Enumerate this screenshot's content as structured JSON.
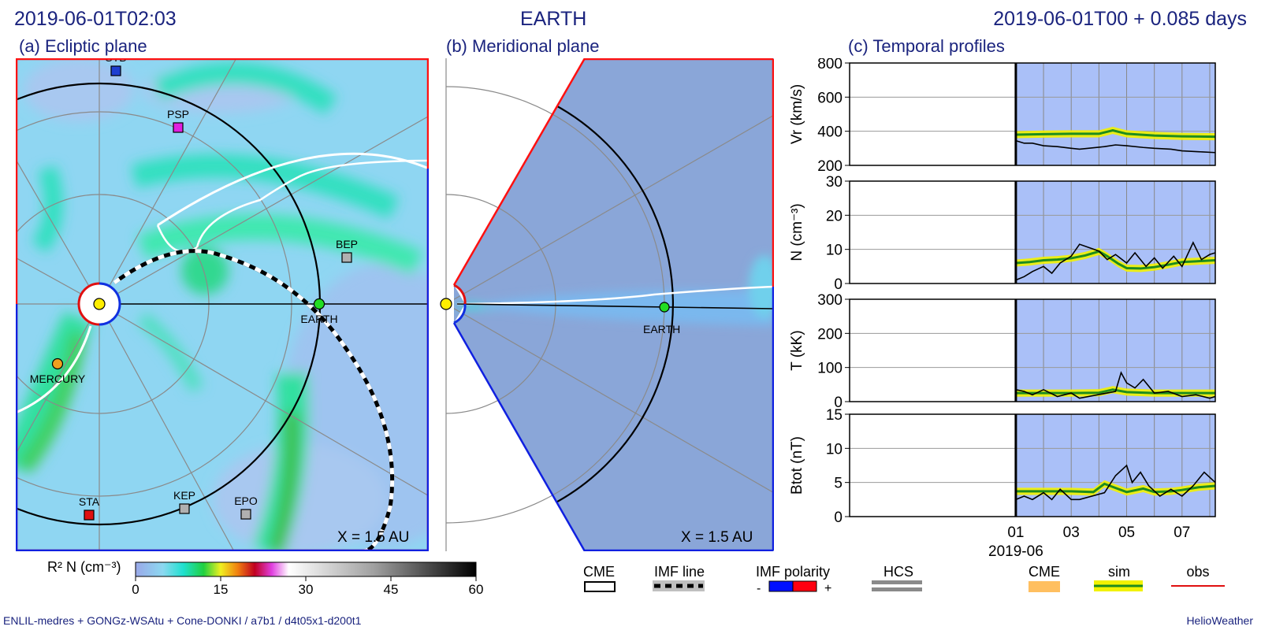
{
  "header": {
    "left_timestamp": "2019-06-01T02:03",
    "center_title": "EARTH",
    "right_timestamp": "2019-06-01T00 +  0.085 days"
  },
  "panels": {
    "a": {
      "title": "(a) Ecliptic plane",
      "scale_label": "X = 1.5 AU",
      "bodies": [
        {
          "name": "STB",
          "color": "#1f3fd0",
          "marker": "square"
        },
        {
          "name": "PSP",
          "color": "#e020e0",
          "marker": "square"
        },
        {
          "name": "BEP",
          "color": "#b0b0b0",
          "marker": "square"
        },
        {
          "name": "EARTH",
          "color": "#22dd22",
          "marker": "circle"
        },
        {
          "name": "MERCURY",
          "color": "#f0a020",
          "marker": "circle"
        },
        {
          "name": "STA",
          "color": "#e01010",
          "marker": "square"
        },
        {
          "name": "KEP",
          "color": "#b0b0b0",
          "marker": "square"
        },
        {
          "name": "EPO",
          "color": "#b0b0b0",
          "marker": "square"
        }
      ]
    },
    "b": {
      "title": "(b) Meridional plane",
      "scale_label": "X = 1.5 AU",
      "bodies": [
        {
          "name": "EARTH",
          "color": "#22dd22",
          "marker": "circle"
        }
      ]
    },
    "c": {
      "title": "(c) Temporal profiles",
      "x_ticks": [
        "01",
        "03",
        "05",
        "07"
      ],
      "x_sublabel": "2019-06"
    }
  },
  "colorbar": {
    "label": "R² N (cm⁻³)",
    "range": [
      0,
      60
    ],
    "ticks": [
      "0",
      "15",
      "30",
      "45",
      "60"
    ]
  },
  "legend": {
    "cme_outline": "CME",
    "imf_line": "IMF line",
    "imf_polarity": "IMF polarity",
    "polarity_minus": "-",
    "polarity_plus": "+",
    "hcs": "HCS",
    "cme_fill": "CME",
    "sim": "sim",
    "obs": "obs"
  },
  "footer": {
    "left": "ENLIL-medres + GONGz-WSAtu + Cone-DONKI / a7b1 / d4t05x1-d200t1",
    "right": "HelioWeather"
  },
  "colors": {
    "title_blue": "#1a237e",
    "sim_green": "#1e8c1e",
    "sim_band": "#f2f200",
    "obs": "#000000",
    "cme": "#ffbf60",
    "imf_neg": "#0010ff",
    "imf_pos": "#ff0010",
    "profile_bg": "#aac0f8"
  },
  "chart_data": [
    {
      "type": "line",
      "panel": "Vr",
      "ylabel": "Vr (km/s)",
      "ylim": [
        200,
        800
      ],
      "yticks": [
        200,
        400,
        600,
        800
      ],
      "xlim": [
        -5,
        8.2
      ],
      "x_unit": "days of 2019-06",
      "grid": true,
      "series": [
        {
          "name": "sim",
          "x": [
            1.0,
            2.0,
            3.0,
            4.0,
            4.5,
            5.0,
            6.0,
            7.0,
            8.2
          ],
          "values": [
            380,
            383,
            385,
            385,
            405,
            385,
            375,
            370,
            368
          ]
        },
        {
          "name": "obs",
          "x": [
            1.0,
            1.3,
            1.6,
            2.0,
            2.5,
            3.0,
            3.3,
            4.2,
            4.6,
            5.0,
            5.6,
            6.0,
            6.6,
            7.0,
            7.6,
            8.2
          ],
          "values": [
            345,
            330,
            330,
            315,
            310,
            300,
            295,
            310,
            320,
            315,
            305,
            300,
            295,
            285,
            280,
            275
          ]
        }
      ]
    },
    {
      "type": "line",
      "panel": "N",
      "ylabel": "N (cm⁻³)",
      "ylim": [
        0,
        30
      ],
      "yticks": [
        0,
        10,
        20,
        30
      ],
      "xlim": [
        -5,
        8.2
      ],
      "x_unit": "days of 2019-06",
      "grid": true,
      "series": [
        {
          "name": "sim",
          "x": [
            1.0,
            1.5,
            2.0,
            2.5,
            3.0,
            3.5,
            4.0,
            4.3,
            4.7,
            5.0,
            5.5,
            6.0,
            6.5,
            7.0,
            7.5,
            8.2
          ],
          "values": [
            6,
            6.3,
            6.8,
            7,
            7.4,
            8.2,
            9.4,
            8,
            5.8,
            4.5,
            4.4,
            4.8,
            5.5,
            6.3,
            6.5,
            6.8
          ]
        },
        {
          "name": "obs",
          "x": [
            1.0,
            1.3,
            1.6,
            2.0,
            2.3,
            2.6,
            3.0,
            3.3,
            4.0,
            4.3,
            4.6,
            5.0,
            5.3,
            5.7,
            6.0,
            6.3,
            6.7,
            7.0,
            7.4,
            7.7,
            8.0,
            8.2
          ],
          "values": [
            1,
            2,
            3.5,
            5,
            3,
            6,
            8,
            11.5,
            9.5,
            7,
            8.5,
            6,
            9,
            5,
            7.5,
            4.5,
            8,
            5,
            12,
            7,
            8.5,
            9
          ]
        }
      ]
    },
    {
      "type": "line",
      "panel": "T",
      "ylabel": "T (kK)",
      "ylim": [
        0,
        300
      ],
      "yticks": [
        0,
        100,
        200,
        300
      ],
      "xlim": [
        -5,
        8.2
      ],
      "x_unit": "days of 2019-06",
      "grid": true,
      "series": [
        {
          "name": "sim",
          "x": [
            1.0,
            2.0,
            3.0,
            4.0,
            4.5,
            5.0,
            6.0,
            7.0,
            8.2
          ],
          "values": [
            25,
            25,
            25,
            26,
            35,
            28,
            25,
            25,
            25
          ]
        },
        {
          "name": "obs",
          "x": [
            1.0,
            1.3,
            1.6,
            2.0,
            2.5,
            3.0,
            3.3,
            4.6,
            4.8,
            5.0,
            5.3,
            5.6,
            6.0,
            6.5,
            7.0,
            7.5,
            8.0,
            8.2
          ],
          "values": [
            35,
            30,
            20,
            35,
            15,
            25,
            10,
            30,
            85,
            55,
            40,
            65,
            25,
            30,
            15,
            20,
            10,
            15
          ]
        }
      ]
    },
    {
      "type": "line",
      "panel": "Btot",
      "ylabel": "Btot (nT)",
      "ylim": [
        0,
        15
      ],
      "yticks": [
        0,
        5,
        10,
        15
      ],
      "xlim": [
        -5,
        8.2
      ],
      "x_unit": "days of 2019-06",
      "grid": true,
      "series": [
        {
          "name": "sim",
          "x": [
            1.0,
            2.0,
            3.0,
            3.8,
            4.2,
            4.6,
            5.0,
            5.6,
            6.0,
            6.6,
            7.0,
            7.6,
            8.2
          ],
          "values": [
            3.7,
            3.7,
            3.7,
            3.6,
            4.8,
            4.2,
            3.6,
            4.1,
            3.6,
            3.7,
            3.9,
            4.3,
            4.5
          ]
        },
        {
          "name": "obs",
          "x": [
            1.0,
            1.3,
            1.6,
            2.0,
            2.3,
            2.6,
            3.0,
            3.3,
            4.2,
            4.6,
            5.0,
            5.2,
            5.5,
            5.8,
            6.2,
            6.6,
            7.0,
            7.4,
            7.8,
            8.2
          ],
          "values": [
            2.5,
            3,
            2.5,
            3.5,
            2.5,
            4,
            2.5,
            2.5,
            3.5,
            6,
            7.5,
            5,
            6.5,
            4.5,
            3,
            4,
            3,
            4.5,
            6.5,
            5
          ]
        }
      ]
    }
  ]
}
